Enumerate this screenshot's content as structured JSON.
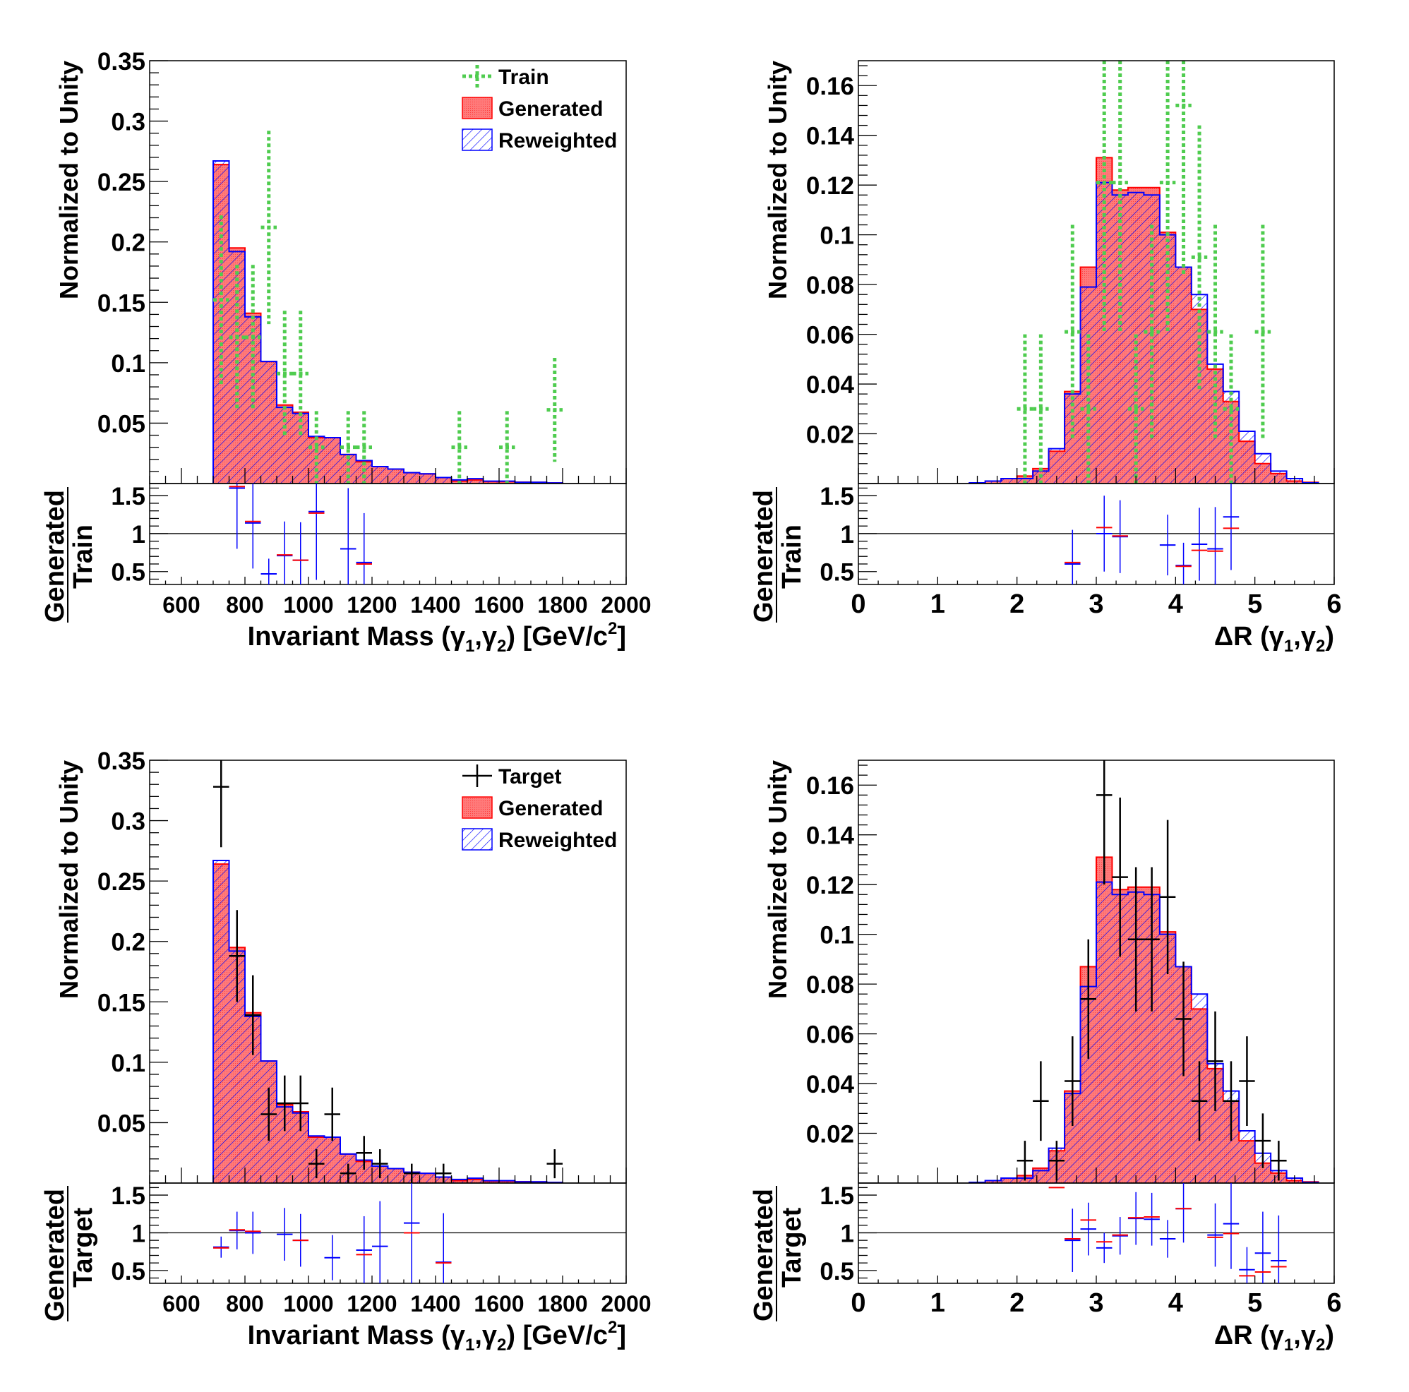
{
  "chart_data": [
    {
      "type": "bar",
      "panel": "mass-train",
      "ylabel": "Normalized to Unity",
      "xlabel": "Invariant Mass (γ1,γ2) [GeV/c2]",
      "ratio_ylabel": {
        "numerator": "Generated",
        "denominator": "Train"
      },
      "xlim": [
        500,
        2000
      ],
      "ylim": [
        0,
        0.35
      ],
      "ratio_ylim": [
        0.33,
        1.66
      ],
      "xticks": [
        "600",
        "800",
        "1000",
        "1200",
        "1400",
        "1600",
        "1800",
        "2000"
      ],
      "yticks": [
        "0.05",
        "0.1",
        "0.15",
        "0.2",
        "0.25",
        "0.3",
        "0.35"
      ],
      "ratio_yticks": [
        "0.5",
        "1",
        "1.5"
      ],
      "legend": [
        "Train",
        "Generated",
        "Reweighted"
      ],
      "legend_placement": "top-right",
      "bin_start": 700,
      "bin_width": 50,
      "generated": [
        0.264,
        0.195,
        0.141,
        0.101,
        0.065,
        0.059,
        0.038,
        0.038,
        0.024,
        0.018,
        0.014,
        0.012,
        0.009,
        0.008,
        0.005,
        0.002,
        0.003,
        0.0015,
        0.0015,
        0.0012,
        0.001,
        0.0005
      ],
      "reweighted": [
        0.267,
        0.192,
        0.138,
        0.101,
        0.063,
        0.058,
        0.039,
        0.038,
        0.024,
        0.019,
        0.014,
        0.012,
        0.009,
        0.008,
        0.005,
        0.003,
        0.004,
        0.002,
        0.002,
        0.001,
        0.001,
        0.0005
      ],
      "reference": {
        "name": "Train",
        "style": "train",
        "points": [
          [
            725,
            0.152,
            0.07
          ],
          [
            775,
            0.121,
            0.06
          ],
          [
            825,
            0.121,
            0.06
          ],
          [
            875,
            0.212,
            0.08
          ],
          [
            925,
            0.091,
            0.052
          ],
          [
            975,
            0.091,
            0.052
          ],
          [
            1025,
            0.03,
            0.03
          ],
          [
            1125,
            0.03,
            0.03
          ],
          [
            1175,
            0.03,
            0.03
          ],
          [
            1475,
            0.03,
            0.03
          ],
          [
            1625,
            0.03,
            0.03
          ],
          [
            1775,
            0.061,
            0.043
          ]
        ]
      },
      "ratio_generated": [
        [
          775,
          1.62
        ],
        [
          825,
          1.16
        ],
        [
          925,
          0.72
        ],
        [
          975,
          0.65
        ],
        [
          1025,
          1.27
        ],
        [
          1175,
          0.6
        ]
      ],
      "ratio_reweighted": [
        [
          775,
          1.6,
          0.8
        ],
        [
          825,
          1.14,
          0.6
        ],
        [
          875,
          0.47,
          0.2
        ],
        [
          925,
          0.71,
          0.45
        ],
        [
          975,
          0.65,
          0.5
        ],
        [
          1025,
          1.29,
          0.9
        ],
        [
          1125,
          0.8,
          0.8
        ],
        [
          1175,
          0.62,
          0.65
        ]
      ]
    },
    {
      "type": "bar",
      "panel": "dr-train",
      "ylabel": "Normalized to Unity",
      "xlabel": "ΔR (γ1,γ2)",
      "ratio_ylabel": {
        "numerator": "Generated",
        "denominator": "Train"
      },
      "xlim": [
        0,
        6
      ],
      "ylim": [
        0,
        0.17
      ],
      "ratio_ylim": [
        0.33,
        1.66
      ],
      "xticks": [
        "0",
        "1",
        "2",
        "3",
        "4",
        "5",
        "6"
      ],
      "yticks": [
        "0.02",
        "0.04",
        "0.06",
        "0.08",
        "0.1",
        "0.12",
        "0.14",
        "0.16"
      ],
      "ratio_yticks": [
        "0.5",
        "1",
        "1.5"
      ],
      "legend": [],
      "bin_start": 1.4,
      "bin_width": 0.2,
      "generated": [
        0.0003,
        0.001,
        0.002,
        0.003,
        0.006,
        0.013,
        0.037,
        0.087,
        0.131,
        0.118,
        0.119,
        0.119,
        0.101,
        0.087,
        0.07,
        0.046,
        0.033,
        0.017,
        0.008,
        0.004,
        0.001,
        0.0005
      ],
      "reweighted": [
        0.0003,
        0.001,
        0.002,
        0.002,
        0.005,
        0.014,
        0.036,
        0.079,
        0.121,
        0.116,
        0.117,
        0.116,
        0.1,
        0.087,
        0.076,
        0.048,
        0.037,
        0.021,
        0.012,
        0.005,
        0.002,
        0.0003
      ],
      "reference": {
        "name": "Train",
        "style": "train",
        "points": [
          [
            2.1,
            0.03,
            0.03
          ],
          [
            2.3,
            0.03,
            0.03
          ],
          [
            2.7,
            0.061,
            0.043
          ],
          [
            2.9,
            0.03,
            0.03
          ],
          [
            3.1,
            0.121,
            0.06
          ],
          [
            3.3,
            0.121,
            0.06
          ],
          [
            3.5,
            0.03,
            0.03
          ],
          [
            3.7,
            0.061,
            0.043
          ],
          [
            3.9,
            0.121,
            0.06
          ],
          [
            4.1,
            0.152,
            0.068
          ],
          [
            4.3,
            0.091,
            0.053
          ],
          [
            4.5,
            0.061,
            0.043
          ],
          [
            4.7,
            0.03,
            0.03
          ],
          [
            5.1,
            0.061,
            0.043
          ]
        ]
      },
      "ratio_generated": [
        [
          2.7,
          0.62
        ],
        [
          3.1,
          1.08
        ],
        [
          3.3,
          0.97
        ],
        [
          4.1,
          0.57
        ],
        [
          4.3,
          0.78
        ],
        [
          4.5,
          0.77
        ],
        [
          4.7,
          1.07
        ]
      ],
      "ratio_reweighted": [
        [
          2.7,
          0.6,
          0.45
        ],
        [
          3.1,
          1.0,
          0.5
        ],
        [
          3.3,
          0.96,
          0.48
        ],
        [
          3.9,
          0.85,
          0.4
        ],
        [
          4.1,
          0.58,
          0.3
        ],
        [
          4.3,
          0.86,
          0.48
        ],
        [
          4.5,
          0.8,
          0.55
        ],
        [
          4.7,
          1.22,
          0.7
        ]
      ]
    },
    {
      "type": "bar",
      "panel": "mass-target",
      "ylabel": "Normalized to Unity",
      "xlabel": "Invariant Mass (γ1,γ2) [GeV/c2]",
      "ratio_ylabel": {
        "numerator": "Generated",
        "denominator": "Target"
      },
      "xlim": [
        500,
        2000
      ],
      "ylim": [
        0,
        0.35
      ],
      "ratio_ylim": [
        0.33,
        1.66
      ],
      "xticks": [
        "600",
        "800",
        "1000",
        "1200",
        "1400",
        "1600",
        "1800",
        "2000"
      ],
      "yticks": [
        "0.05",
        "0.1",
        "0.15",
        "0.2",
        "0.25",
        "0.3",
        "0.35"
      ],
      "ratio_yticks": [
        "0.5",
        "1",
        "1.5"
      ],
      "legend": [
        "Target",
        "Generated",
        "Reweighted"
      ],
      "legend_placement": "top-right",
      "bin_start": 700,
      "bin_width": 50,
      "generated": [
        0.264,
        0.195,
        0.141,
        0.101,
        0.065,
        0.059,
        0.038,
        0.038,
        0.024,
        0.018,
        0.014,
        0.012,
        0.009,
        0.008,
        0.005,
        0.002,
        0.003,
        0.0015,
        0.0015,
        0.0012,
        0.001,
        0.0005
      ],
      "reweighted": [
        0.267,
        0.192,
        0.138,
        0.101,
        0.063,
        0.058,
        0.039,
        0.038,
        0.024,
        0.019,
        0.014,
        0.012,
        0.009,
        0.008,
        0.005,
        0.003,
        0.004,
        0.002,
        0.002,
        0.001,
        0.001,
        0.0005
      ],
      "reference": {
        "name": "Target",
        "style": "target",
        "points": [
          [
            725,
            0.328,
            0.05
          ],
          [
            775,
            0.188,
            0.038
          ],
          [
            825,
            0.139,
            0.033
          ],
          [
            875,
            0.057,
            0.022
          ],
          [
            925,
            0.066,
            0.023
          ],
          [
            975,
            0.066,
            0.023
          ],
          [
            1025,
            0.016,
            0.012
          ],
          [
            1075,
            0.057,
            0.022
          ],
          [
            1125,
            0.008,
            0.008
          ],
          [
            1175,
            0.025,
            0.014
          ],
          [
            1225,
            0.016,
            0.012
          ],
          [
            1325,
            0.008,
            0.008
          ],
          [
            1425,
            0.008,
            0.008
          ],
          [
            1775,
            0.016,
            0.012
          ]
        ]
      },
      "ratio_generated": [
        [
          725,
          0.8
        ],
        [
          775,
          1.04
        ],
        [
          825,
          1.02
        ],
        [
          975,
          0.9
        ],
        [
          1175,
          0.71
        ],
        [
          1325,
          1.0
        ],
        [
          1425,
          0.6
        ]
      ],
      "ratio_reweighted": [
        [
          725,
          0.81,
          0.14
        ],
        [
          775,
          1.03,
          0.25
        ],
        [
          825,
          1.0,
          0.28
        ],
        [
          925,
          0.98,
          0.35
        ],
        [
          975,
          0.9,
          0.35
        ],
        [
          1075,
          0.67,
          0.3
        ],
        [
          1175,
          0.77,
          0.45
        ],
        [
          1225,
          0.82,
          0.6
        ],
        [
          1325,
          1.13,
          0.8
        ],
        [
          1425,
          0.61,
          0.65
        ]
      ]
    },
    {
      "type": "bar",
      "panel": "dr-target",
      "ylabel": "Normalized to Unity",
      "xlabel": "ΔR (γ1,γ2)",
      "ratio_ylabel": {
        "numerator": "Generated",
        "denominator": "Target"
      },
      "xlim": [
        0,
        6
      ],
      "ylim": [
        0,
        0.17
      ],
      "ratio_ylim": [
        0.33,
        1.66
      ],
      "xticks": [
        "0",
        "1",
        "2",
        "3",
        "4",
        "5",
        "6"
      ],
      "yticks": [
        "0.02",
        "0.04",
        "0.06",
        "0.08",
        "0.1",
        "0.12",
        "0.14",
        "0.16"
      ],
      "ratio_yticks": [
        "0.5",
        "1",
        "1.5"
      ],
      "legend": [],
      "bin_start": 1.4,
      "bin_width": 0.2,
      "generated": [
        0.0003,
        0.001,
        0.002,
        0.003,
        0.006,
        0.013,
        0.037,
        0.087,
        0.131,
        0.118,
        0.119,
        0.119,
        0.101,
        0.087,
        0.07,
        0.046,
        0.033,
        0.017,
        0.008,
        0.004,
        0.001,
        0.0005
      ],
      "reweighted": [
        0.0003,
        0.001,
        0.002,
        0.002,
        0.005,
        0.014,
        0.036,
        0.079,
        0.121,
        0.116,
        0.117,
        0.116,
        0.1,
        0.087,
        0.076,
        0.048,
        0.037,
        0.021,
        0.012,
        0.005,
        0.002,
        0.0003
      ],
      "reference": {
        "name": "Target",
        "style": "target",
        "points": [
          [
            2.1,
            0.009,
            0.008
          ],
          [
            2.3,
            0.033,
            0.016
          ],
          [
            2.5,
            0.009,
            0.008
          ],
          [
            2.7,
            0.041,
            0.018
          ],
          [
            2.9,
            0.074,
            0.024
          ],
          [
            3.1,
            0.156,
            0.036
          ],
          [
            3.3,
            0.123,
            0.032
          ],
          [
            3.5,
            0.098,
            0.029
          ],
          [
            3.7,
            0.098,
            0.029
          ],
          [
            3.9,
            0.115,
            0.031
          ],
          [
            4.1,
            0.066,
            0.023
          ],
          [
            4.3,
            0.033,
            0.016
          ],
          [
            4.5,
            0.049,
            0.02
          ],
          [
            4.7,
            0.033,
            0.016
          ],
          [
            4.9,
            0.041,
            0.018
          ],
          [
            5.1,
            0.017,
            0.011
          ],
          [
            5.3,
            0.009,
            0.008
          ]
        ]
      },
      "ratio_generated": [
        [
          2.5,
          1.6
        ],
        [
          2.7,
          0.92
        ],
        [
          2.9,
          1.17
        ],
        [
          3.1,
          0.88
        ],
        [
          3.3,
          0.97
        ],
        [
          3.5,
          1.2
        ],
        [
          3.7,
          1.21
        ],
        [
          4.1,
          1.32
        ],
        [
          4.5,
          0.94
        ],
        [
          4.7,
          0.99
        ],
        [
          4.9,
          0.43
        ],
        [
          5.1,
          0.48
        ],
        [
          5.3,
          0.55
        ]
      ],
      "ratio_reweighted": [
        [
          2.7,
          0.9,
          0.42
        ],
        [
          2.9,
          1.05,
          0.35
        ],
        [
          3.1,
          0.8,
          0.2
        ],
        [
          3.3,
          0.96,
          0.25
        ],
        [
          3.5,
          1.19,
          0.35
        ],
        [
          3.7,
          1.18,
          0.35
        ],
        [
          3.9,
          0.92,
          0.25
        ],
        [
          4.1,
          1.32,
          0.45
        ],
        [
          4.5,
          0.97,
          0.42
        ],
        [
          4.7,
          1.12,
          0.6
        ],
        [
          4.9,
          0.51,
          0.3
        ],
        [
          5.1,
          0.73,
          0.55
        ],
        [
          5.3,
          0.63,
          0.6
        ]
      ]
    }
  ],
  "colors": {
    "generated_fill": "#ff7a7a",
    "generated_line": "#ff0000",
    "reweighted": "#0000ff",
    "train": "#4fcc4f",
    "target": "#000000"
  }
}
